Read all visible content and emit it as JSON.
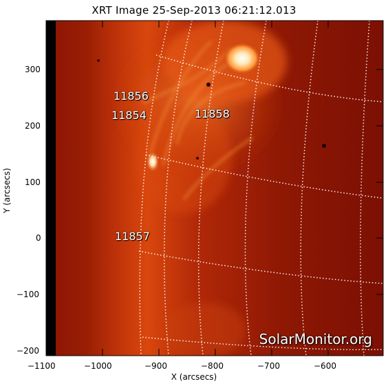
{
  "title": "XRT Image 25-Sep-2013 06:21:12.013",
  "x_axis": {
    "label": "X (arcsecs)",
    "ticks": [
      "−1100",
      "−1000",
      "−900",
      "−800",
      "−700",
      "−600"
    ]
  },
  "y_axis": {
    "label": "Y (arcsecs)",
    "ticks": [
      "300",
      "200",
      "100",
      "0",
      "−100",
      "−200"
    ]
  },
  "active_regions": [
    {
      "id": "11856",
      "text": "11856"
    },
    {
      "id": "11854",
      "text": "11854"
    },
    {
      "id": "11858",
      "text": "11858"
    },
    {
      "id": "11857",
      "text": "11857"
    }
  ],
  "watermark": "SolarMonitor.org",
  "colors": {
    "solar_dark": "#7a0d02",
    "solar_mid": "#c0350a",
    "solar_bright": "#ffe6b0",
    "grid": "#ffffff"
  }
}
